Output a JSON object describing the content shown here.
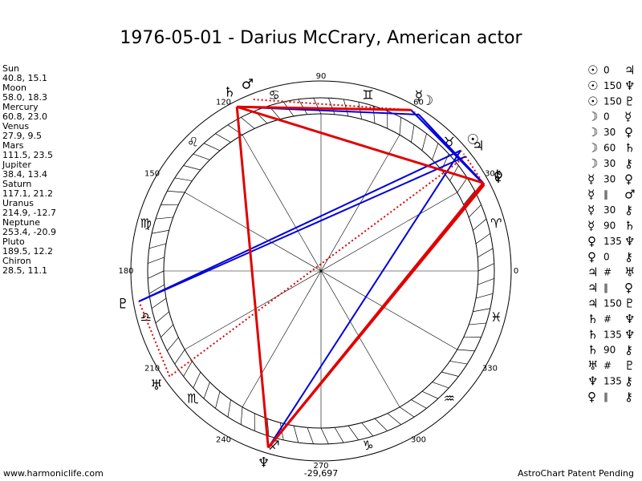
{
  "title": "1976-05-01 - Darius McCrary, American actor",
  "planets": [
    {
      "name": "Sun",
      "coords": "40.8, 15.1",
      "glyph": "☉"
    },
    {
      "name": "Moon",
      "coords": "58.0, 18.3",
      "glyph": "☽"
    },
    {
      "name": "Mercury",
      "coords": "60.8, 23.0",
      "glyph": "☿"
    },
    {
      "name": "Venus",
      "coords": "27.9, 9.5",
      "glyph": "♀"
    },
    {
      "name": "Mars",
      "coords": "111.5, 23.5",
      "glyph": "♂"
    },
    {
      "name": "Jupiter",
      "coords": "38.4, 13.4",
      "glyph": "♃"
    },
    {
      "name": "Saturn",
      "coords": "117.1, 21.2",
      "glyph": "♄"
    },
    {
      "name": "Uranus",
      "coords": "214.9, -12.7",
      "glyph": "♅"
    },
    {
      "name": "Neptune",
      "coords": "253.4, -20.9",
      "glyph": "♆"
    },
    {
      "name": "Pluto",
      "coords": "189.5, 12.2",
      "glyph": "♇"
    },
    {
      "name": "Chiron",
      "coords": "28.5, 11.1",
      "glyph": "⚷"
    }
  ],
  "aspects": [
    [
      "☉",
      "0",
      "♃"
    ],
    [
      "☉",
      "150",
      "♆"
    ],
    [
      "☉",
      "150",
      "♇"
    ],
    [
      "☽",
      "0",
      "☿"
    ],
    [
      "☽",
      "30",
      "♀"
    ],
    [
      "☽",
      "60",
      "♄"
    ],
    [
      "☽",
      "30",
      "⚷"
    ],
    [
      "☿",
      "30",
      "♀"
    ],
    [
      "☿",
      "∥",
      "♂"
    ],
    [
      "☿",
      "30",
      "⚷"
    ],
    [
      "☿",
      "90",
      "♄"
    ],
    [
      "♀",
      "135",
      "♆"
    ],
    [
      "♀",
      "0",
      "⚷"
    ],
    [
      "♃",
      "#",
      "♅"
    ],
    [
      "♃",
      "∥",
      "♀"
    ],
    [
      "♃",
      "150",
      "♇"
    ],
    [
      "♄",
      "#",
      "♆"
    ],
    [
      "♄",
      "135",
      "♆"
    ],
    [
      "♄",
      "90",
      "⚷"
    ],
    [
      "♅",
      "#",
      "♇"
    ],
    [
      "♆",
      "135",
      "⚷"
    ],
    [
      "♀",
      "∥",
      "⚷"
    ]
  ],
  "degree_labels": [
    "0",
    "30",
    "60",
    "90",
    "120",
    "150",
    "180",
    "210",
    "240",
    "270",
    "300",
    "330"
  ],
  "zodiac": [
    "♈",
    "♉",
    "♊",
    "♋",
    "♌",
    "♍",
    "♎",
    "♏",
    "♐",
    "♑",
    "♒",
    "♓"
  ],
  "footer": {
    "left": "www.harmoniclife.com",
    "center": "-29,697",
    "right": "AstroChart Patent Pending"
  }
}
